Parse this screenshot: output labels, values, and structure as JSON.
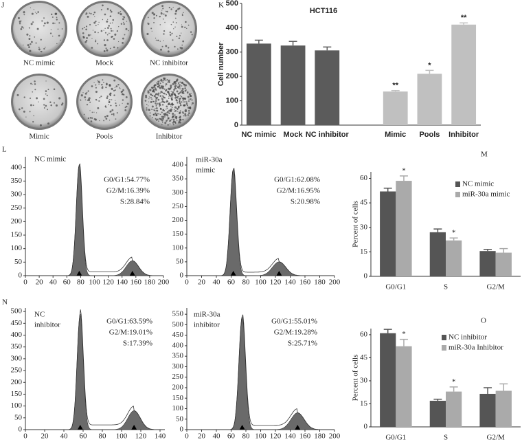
{
  "photos": {
    "panel": "J",
    "labels": [
      "NC mimic",
      "Mock",
      "NC inhibitor",
      "Mimic",
      "Pools",
      "Inhibitor"
    ]
  },
  "chart_data": [
    {
      "type": "bar",
      "panel": "K",
      "title": "HCT116",
      "y_label": "Cell number",
      "categories": [
        "NC mimic",
        "Mock",
        "NC inhibitor",
        null,
        "Mimic",
        "Pools",
        "Inhibitor"
      ],
      "values": [
        335,
        327,
        307,
        null,
        138,
        211,
        413
      ],
      "errors": [
        14,
        17,
        14,
        null,
        4,
        14,
        7
      ],
      "significance": [
        null,
        null,
        null,
        null,
        "**",
        "*",
        "**"
      ],
      "colors": [
        "#5b5b5b",
        "#5b5b5b",
        "#5b5b5b",
        null,
        "#c0c0c0",
        "#c0c0c0",
        "#c0c0c0"
      ],
      "ylim": [
        0,
        500
      ],
      "yticks": [
        0,
        100,
        200,
        300,
        400,
        500
      ]
    },
    {
      "type": "flow-histogram",
      "panel": "L",
      "label_lines": [
        "NC mimic"
      ],
      "annotations": [
        "G0/G1:54.77%",
        "G2/M:16.39%",
        "S:28.84%"
      ],
      "peaks": [
        {
          "x": 78,
          "height": 410
        },
        {
          "x": 155,
          "height": 55
        }
      ],
      "xlim": [
        0,
        200
      ],
      "xticks": [
        0,
        20,
        40,
        60,
        80,
        100,
        120,
        140,
        160,
        180,
        200
      ],
      "ylim": [
        0,
        440
      ],
      "yticks": [
        0,
        50,
        100,
        150,
        200,
        250,
        300,
        350,
        400
      ]
    },
    {
      "type": "flow-histogram",
      "label_lines": [
        "miR-30a",
        "mimic"
      ],
      "annotations": [
        "G0/G1:62.08%",
        "G2/M:16.95%",
        "S:20.98%"
      ],
      "peaks": [
        {
          "x": 63,
          "height": 385
        },
        {
          "x": 125,
          "height": 50
        }
      ],
      "xlim": [
        0,
        200
      ],
      "xticks": [
        0,
        20,
        40,
        60,
        80,
        100,
        120,
        140,
        160,
        180,
        200
      ],
      "ylim": [
        0,
        430
      ],
      "yticks": [
        0,
        50,
        100,
        150,
        200,
        250,
        300,
        350,
        400
      ]
    },
    {
      "type": "bar",
      "panel": "M",
      "y_label": "Percent of cells",
      "categories": [
        "G0/G1",
        "S",
        "G2/M"
      ],
      "series": [
        {
          "name": "NC mimic",
          "color": "#555555",
          "values": [
            52,
            27,
            15.5
          ],
          "errors": [
            2,
            2,
            1
          ],
          "significance": [
            null,
            null,
            null
          ]
        },
        {
          "name": "miR-30a mimic",
          "color": "#aaaaaa",
          "values": [
            58.5,
            22,
            14.5
          ],
          "errors": [
            3,
            1.5,
            2.5
          ],
          "significance": [
            "*",
            "*",
            null
          ]
        }
      ],
      "ylim": [
        0,
        64
      ],
      "yticks": [
        0,
        15,
        30,
        45,
        60
      ]
    },
    {
      "type": "flow-histogram",
      "panel": "N",
      "label_lines": [
        "NC",
        "inhibitor"
      ],
      "annotations": [
        "G0/G1:63.59%",
        "G2/M:19.01%",
        "S:17.39%"
      ],
      "peaks": [
        {
          "x": 57,
          "height": 490
        },
        {
          "x": 113,
          "height": 80
        }
      ],
      "xlim": [
        0,
        145
      ],
      "xticks": [
        0,
        20,
        40,
        60,
        80,
        100,
        120,
        140
      ],
      "ylim": [
        0,
        515
      ],
      "yticks": [
        0,
        50,
        100,
        150,
        200,
        250,
        300,
        350,
        400,
        450,
        500
      ]
    },
    {
      "type": "flow-histogram",
      "label_lines": [
        "miR-30a",
        "inhibitor"
      ],
      "annotations": [
        "G0/G1:55.01%",
        "G2/M:19.28%",
        "S:25.71%"
      ],
      "peaks": [
        {
          "x": 75,
          "height": 540
        },
        {
          "x": 150,
          "height": 80
        }
      ],
      "xlim": [
        0,
        200
      ],
      "xticks": [
        0,
        20,
        40,
        60,
        80,
        100,
        120,
        140,
        160,
        180,
        200
      ],
      "ylim": [
        0,
        580
      ],
      "yticks": [
        0,
        50,
        100,
        150,
        200,
        250,
        300,
        350,
        400,
        450,
        500,
        550
      ]
    },
    {
      "type": "bar",
      "panel": "O",
      "y_label": "Percent of cells",
      "categories": [
        "G0/G1",
        "S",
        "G2/M"
      ],
      "series": [
        {
          "name": "NC inhibitor",
          "color": "#555555",
          "values": [
            61,
            17,
            21.5
          ],
          "errors": [
            2.5,
            1,
            4
          ],
          "significance": [
            null,
            null,
            null
          ]
        },
        {
          "name": "miR-30a Inhibitor",
          "color": "#aaaaaa",
          "values": [
            52.5,
            23,
            23.5
          ],
          "errors": [
            4.5,
            3,
            4.5
          ],
          "significance": [
            "*",
            "*",
            null
          ]
        }
      ],
      "ylim": [
        0,
        64
      ],
      "yticks": [
        0,
        15,
        30,
        45,
        60
      ]
    }
  ]
}
